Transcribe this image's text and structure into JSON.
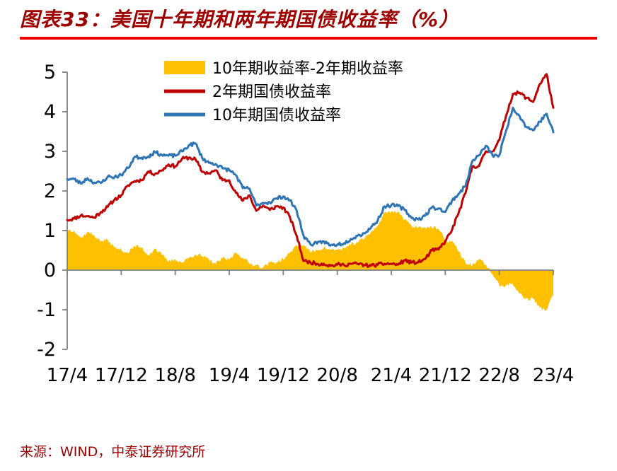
{
  "header": {
    "title": "图表33：美国十年期和两年期国债收益率（%）"
  },
  "footer": {
    "source": "来源：WIND，中泰证券研究所"
  },
  "colors": {
    "title_text": "#9E0000",
    "title_rule": "#EE0000",
    "axis": "#808080",
    "tick_text": "#000000"
  },
  "chart_data": {
    "type": "line",
    "title": "美国十年期和两年期国债收益率（%）",
    "x_unit": "monthly points from 2017/4 to 2023/4",
    "x_tick_labels": [
      "17/4",
      "17/12",
      "18/8",
      "19/4",
      "19/12",
      "20/8",
      "21/4",
      "21/12",
      "22/8",
      "23/4"
    ],
    "y_ticks": [
      -2,
      -1,
      0,
      1,
      2,
      3,
      4,
      5
    ],
    "ylim": [
      -2,
      5
    ],
    "grid": false,
    "legend_position": "top-center-inside",
    "series": [
      {
        "name": "10年期收益率-2年期收益率",
        "type": "area",
        "color": "#FFC000",
        "values": [
          1.03,
          1.0,
          0.81,
          0.96,
          0.88,
          0.73,
          0.76,
          0.57,
          0.51,
          0.44,
          0.61,
          0.57,
          0.38,
          0.55,
          0.39,
          0.22,
          0.27,
          0.19,
          0.31,
          0.4,
          0.35,
          0.26,
          0.16,
          0.3,
          0.26,
          0.45,
          0.32,
          0.17,
          0.13,
          0.07,
          0.19,
          0.2,
          0.28,
          0.43,
          0.64,
          0.64,
          0.46,
          0.51,
          0.57,
          0.51,
          0.51,
          0.55,
          0.63,
          0.71,
          0.8,
          0.97,
          1.12,
          1.45,
          1.48,
          1.48,
          1.27,
          1.13,
          1.08,
          1.09,
          1.08,
          1.04,
          0.74,
          0.74,
          0.47,
          0.18,
          0.13,
          0.27,
          0.14,
          -0.1,
          -0.39,
          -0.38,
          -0.35,
          -0.59,
          -0.73,
          -0.72,
          -0.95,
          -1.0,
          -0.62
        ]
      },
      {
        "name": "2年期国债收益率",
        "type": "line",
        "color": "#C00000",
        "values": [
          1.27,
          1.3,
          1.38,
          1.36,
          1.33,
          1.47,
          1.6,
          1.78,
          1.89,
          2.14,
          2.25,
          2.27,
          2.49,
          2.43,
          2.52,
          2.67,
          2.62,
          2.81,
          2.84,
          2.8,
          2.48,
          2.45,
          2.52,
          2.27,
          2.27,
          1.95,
          1.75,
          1.89,
          1.5,
          1.63,
          1.52,
          1.61,
          1.58,
          1.33,
          0.86,
          0.23,
          0.2,
          0.16,
          0.16,
          0.11,
          0.14,
          0.13,
          0.16,
          0.16,
          0.13,
          0.11,
          0.14,
          0.16,
          0.16,
          0.14,
          0.25,
          0.19,
          0.2,
          0.28,
          0.5,
          0.52,
          0.73,
          1.02,
          1.46,
          1.95,
          2.62,
          2.63,
          3.0,
          3.0,
          3.29,
          3.9,
          4.45,
          4.48,
          4.35,
          4.25,
          4.7,
          4.95,
          4.1
        ]
      },
      {
        "name": "10年期国债收益率",
        "type": "line",
        "color": "#2E75B6",
        "values": [
          2.3,
          2.3,
          2.19,
          2.32,
          2.21,
          2.2,
          2.36,
          2.35,
          2.4,
          2.58,
          2.86,
          2.84,
          2.87,
          2.98,
          2.91,
          2.89,
          2.89,
          3.0,
          3.15,
          3.2,
          2.83,
          2.71,
          2.68,
          2.57,
          2.53,
          2.4,
          2.07,
          2.06,
          1.63,
          1.7,
          1.71,
          1.81,
          1.86,
          1.76,
          1.5,
          0.87,
          0.66,
          0.67,
          0.73,
          0.62,
          0.65,
          0.68,
          0.79,
          0.87,
          0.93,
          1.08,
          1.26,
          1.61,
          1.64,
          1.62,
          1.52,
          1.32,
          1.28,
          1.37,
          1.58,
          1.56,
          1.47,
          1.76,
          1.93,
          2.13,
          2.75,
          2.9,
          3.14,
          2.9,
          2.9,
          3.52,
          4.1,
          3.89,
          3.62,
          3.53,
          3.75,
          3.95,
          3.48
        ]
      }
    ]
  }
}
